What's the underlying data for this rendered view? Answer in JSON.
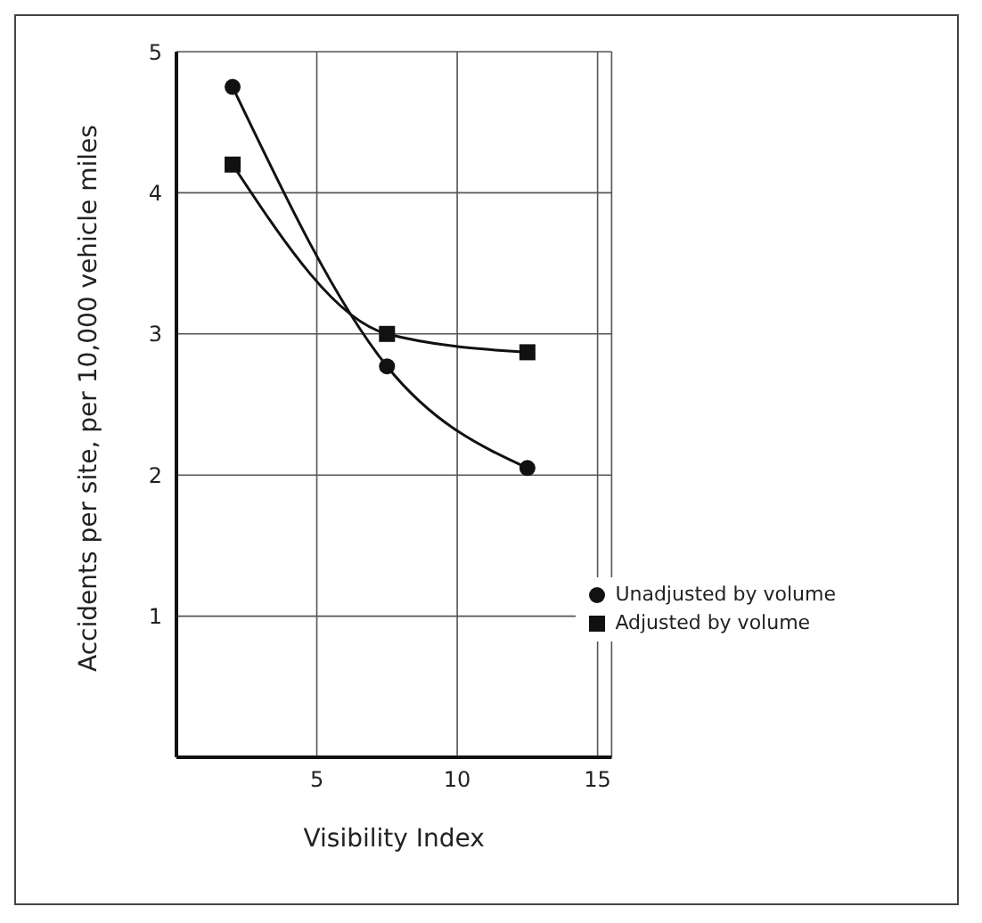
{
  "chart_data": {
    "type": "line",
    "xlabel": "Visibility Index",
    "ylabel": "Accidents per site, per 10,000 vehicle miles",
    "x": [
      2,
      7.5,
      12.5
    ],
    "series": [
      {
        "name": "Unadjusted by volume",
        "color": "#111111",
        "marker": "circle",
        "values": [
          4.75,
          2.77,
          2.05
        ]
      },
      {
        "name": "Adjusted by volume",
        "color": "#111111",
        "marker": "square",
        "values": [
          4.2,
          3.0,
          2.87
        ]
      }
    ],
    "xlim": [
      0,
      15.5
    ],
    "xticks": [
      5,
      10,
      15
    ],
    "ylim": [
      0,
      5
    ],
    "yticks": [
      1,
      2,
      3,
      4,
      5
    ],
    "grid": true,
    "legend": "bottom right",
    "line_style": "solid"
  }
}
